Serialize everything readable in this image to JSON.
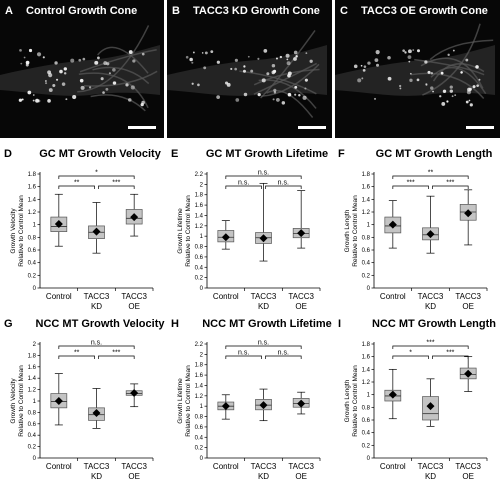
{
  "micrographs": [
    {
      "letter": "A",
      "title": "Control Growth Cone"
    },
    {
      "letter": "B",
      "title": "TACC3 KD Growth Cone"
    },
    {
      "letter": "C",
      "title": "TACC3 OE Growth Cone"
    }
  ],
  "chart_data": [
    {
      "type": "box",
      "letter": "D",
      "title": "GC MT Growth Velocity",
      "ylabel": [
        "Growth Velocity",
        "Relative to Control Mean"
      ],
      "ylim": [
        0,
        1.8
      ],
      "yticks": [
        0,
        0.2,
        0.4,
        0.6,
        0.8,
        1,
        1.2,
        1.4,
        1.6,
        1.8
      ],
      "categories": [
        [
          "Control"
        ],
        [
          "TACC3",
          "KD"
        ],
        [
          "TACC3",
          "OE"
        ]
      ],
      "series": [
        {
          "min": 0.66,
          "q1": 0.89,
          "median": 0.97,
          "q3": 1.12,
          "max": 1.48,
          "mean": 1.01
        },
        {
          "min": 0.55,
          "q1": 0.78,
          "median": 0.88,
          "q3": 0.98,
          "max": 1.35,
          "mean": 0.89
        },
        {
          "min": 0.82,
          "q1": 1.01,
          "median": 1.1,
          "q3": 1.24,
          "max": 1.48,
          "mean": 1.12
        }
      ],
      "brackets": [
        {
          "from": 0,
          "to": 2,
          "label": "*"
        },
        {
          "from": 0,
          "to": 1,
          "label": "**"
        },
        {
          "from": 1,
          "to": 2,
          "label": "***"
        }
      ]
    },
    {
      "type": "box",
      "letter": "E",
      "title": "GC MT Growth Lifetime",
      "ylabel": [
        "Growth Lifetime",
        "Relative to Control Mean"
      ],
      "ylim": [
        0,
        2.2
      ],
      "yticks": [
        0,
        0.2,
        0.4,
        0.6,
        0.8,
        1,
        1.2,
        1.4,
        1.6,
        1.8,
        2,
        2.2
      ],
      "categories": [
        [
          "Control"
        ],
        [
          "TACC3",
          "KD"
        ],
        [
          "TACC3",
          "OE"
        ]
      ],
      "series": [
        {
          "min": 0.75,
          "q1": 0.89,
          "median": 0.98,
          "q3": 1.11,
          "max": 1.3,
          "mean": 0.98
        },
        {
          "min": 0.52,
          "q1": 0.86,
          "median": 0.97,
          "q3": 1.07,
          "max": 2.02,
          "mean": 0.96
        },
        {
          "min": 0.77,
          "q1": 0.97,
          "median": 1.05,
          "q3": 1.15,
          "max": 1.88,
          "mean": 1.06
        }
      ],
      "brackets": [
        {
          "from": 0,
          "to": 2,
          "label": "n.s."
        },
        {
          "from": 0,
          "to": 1,
          "label": "n.s."
        },
        {
          "from": 1,
          "to": 2,
          "label": "n.s."
        }
      ]
    },
    {
      "type": "box",
      "letter": "F",
      "title": "GC MT Growth Length",
      "ylabel": [
        "Growth Length",
        "Relative to Control Mean"
      ],
      "ylim": [
        0,
        1.8
      ],
      "yticks": [
        0,
        0.2,
        0.4,
        0.6,
        0.8,
        1,
        1.2,
        1.4,
        1.6,
        1.8
      ],
      "categories": [
        [
          "Control"
        ],
        [
          "TACC3",
          "KD"
        ],
        [
          "TACC3",
          "OE"
        ]
      ],
      "series": [
        {
          "min": 0.63,
          "q1": 0.87,
          "median": 0.98,
          "q3": 1.12,
          "max": 1.38,
          "mean": 1.0
        },
        {
          "min": 0.55,
          "q1": 0.76,
          "median": 0.84,
          "q3": 0.95,
          "max": 1.45,
          "mean": 0.85
        },
        {
          "min": 0.68,
          "q1": 1.07,
          "median": 1.2,
          "q3": 1.32,
          "max": 1.55,
          "mean": 1.18
        }
      ],
      "brackets": [
        {
          "from": 0,
          "to": 2,
          "label": "**"
        },
        {
          "from": 0,
          "to": 1,
          "label": "***"
        },
        {
          "from": 1,
          "to": 2,
          "label": "***"
        }
      ]
    },
    {
      "type": "box",
      "letter": "G",
      "title": "NCC MT Growth Velocity",
      "ylabel": [
        "Growth Velocity",
        "Relative to Control Mean"
      ],
      "ylim": [
        0,
        2
      ],
      "yticks": [
        0,
        0.2,
        0.4,
        0.6,
        0.8,
        1,
        1.2,
        1.4,
        1.6,
        1.8,
        2
      ],
      "categories": [
        [
          "Control"
        ],
        [
          "TACC3",
          "KD"
        ],
        [
          "TACC3",
          "OE"
        ]
      ],
      "series": [
        {
          "min": 0.58,
          "q1": 0.88,
          "median": 0.99,
          "q3": 1.13,
          "max": 1.48,
          "mean": 1.0
        },
        {
          "min": 0.52,
          "q1": 0.66,
          "median": 0.76,
          "q3": 0.88,
          "max": 1.22,
          "mean": 0.79
        },
        {
          "min": 0.9,
          "q1": 1.1,
          "median": 1.13,
          "q3": 1.18,
          "max": 1.3,
          "mean": 1.14
        }
      ],
      "brackets": [
        {
          "from": 0,
          "to": 2,
          "label": "n.s."
        },
        {
          "from": 0,
          "to": 1,
          "label": "**"
        },
        {
          "from": 1,
          "to": 2,
          "label": "***"
        }
      ]
    },
    {
      "type": "box",
      "letter": "H",
      "title": "NCC MT Growth Lifetime",
      "ylabel": [
        "Growth Lifetime",
        "Relative to Control Mean"
      ],
      "ylim": [
        0,
        2.2
      ],
      "yticks": [
        0,
        0.2,
        0.4,
        0.6,
        0.8,
        1,
        1.2,
        1.4,
        1.6,
        1.8,
        2,
        2.2
      ],
      "categories": [
        [
          "Control"
        ],
        [
          "TACC3",
          "KD"
        ],
        [
          "TACC3",
          "OE"
        ]
      ],
      "series": [
        {
          "min": 0.75,
          "q1": 0.93,
          "median": 1.0,
          "q3": 1.08,
          "max": 1.22,
          "mean": 1.0
        },
        {
          "min": 0.72,
          "q1": 0.93,
          "median": 1.02,
          "q3": 1.13,
          "max": 1.33,
          "mean": 1.02
        },
        {
          "min": 0.85,
          "q1": 0.98,
          "median": 1.05,
          "q3": 1.15,
          "max": 1.27,
          "mean": 1.05
        }
      ],
      "brackets": [
        {
          "from": 0,
          "to": 2,
          "label": "n.s."
        },
        {
          "from": 0,
          "to": 1,
          "label": "n.s."
        },
        {
          "from": 1,
          "to": 2,
          "label": "n.s."
        }
      ]
    },
    {
      "type": "box",
      "letter": "I",
      "title": "NCC MT Growth Length",
      "ylabel": [
        "Growth Length",
        "Relative to Control Mean"
      ],
      "ylim": [
        0,
        1.8
      ],
      "yticks": [
        0,
        0.2,
        0.4,
        0.6,
        0.8,
        1,
        1.2,
        1.4,
        1.6,
        1.8
      ],
      "categories": [
        [
          "Control"
        ],
        [
          "TACC3",
          "KD"
        ],
        [
          "TACC3",
          "OE"
        ]
      ],
      "series": [
        {
          "min": 0.62,
          "q1": 0.9,
          "median": 0.98,
          "q3": 1.07,
          "max": 1.4,
          "mean": 1.0
        },
        {
          "min": 0.5,
          "q1": 0.6,
          "median": 0.7,
          "q3": 0.97,
          "max": 1.25,
          "mean": 0.82
        },
        {
          "min": 1.05,
          "q1": 1.25,
          "median": 1.32,
          "q3": 1.42,
          "max": 1.6,
          "mean": 1.33
        }
      ],
      "brackets": [
        {
          "from": 0,
          "to": 2,
          "label": "***"
        },
        {
          "from": 0,
          "to": 1,
          "label": "*"
        },
        {
          "from": 1,
          "to": 2,
          "label": "***"
        }
      ]
    }
  ]
}
